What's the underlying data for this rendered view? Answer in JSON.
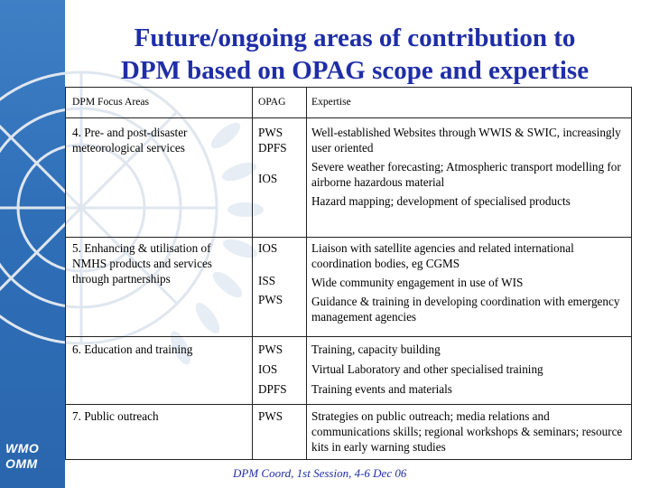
{
  "title": {
    "line1": "Future/ongoing areas of contribution to",
    "line2": "DPM based on OPAG scope and expertise"
  },
  "logo": {
    "line1": "WMO",
    "line2": "OMM"
  },
  "table": {
    "headers": {
      "focus": "DPM Focus Areas",
      "opag": "OPAG",
      "expertise": "Expertise"
    },
    "rows": [
      {
        "focus": [
          "4. Pre- and post-disaster",
          "meteorological services"
        ],
        "opag": [
          "PWS",
          "DPFS",
          "IOS"
        ],
        "expertise": [
          "Well-established Websites through WWIS & SWIC, increasingly user oriented",
          "Severe weather forecasting; Atmospheric transport modelling for airborne hazardous material",
          "Hazard mapping; development of specialised products"
        ]
      },
      {
        "focus": [
          "5. Enhancing & utilisation of",
          "NMHS products and services",
          "through partnerships"
        ],
        "opag": [
          "IOS",
          "ISS",
          "PWS"
        ],
        "expertise": [
          "Liaison with satellite agencies and related international coordination bodies, eg CGMS",
          "Wide community engagement in use of WIS",
          "Guidance & training in developing coordination with emergency management agencies"
        ]
      },
      {
        "focus": [
          "6. Education and training"
        ],
        "opag": [
          "PWS",
          "IOS",
          "DPFS"
        ],
        "expertise": [
          "Training, capacity building",
          "Virtual Laboratory and other specialised training",
          "Training events and materials"
        ]
      },
      {
        "focus": [
          "7. Public outreach"
        ],
        "opag": [
          "PWS"
        ],
        "expertise": [
          "Strategies on public outreach; media relations and communications skills; regional workshops & seminars; resource kits in early warning studies"
        ]
      }
    ]
  },
  "footer": "DPM Coord, 1st Session, 4-6 Dec 06",
  "colors": {
    "title": "#1f2ea6",
    "sidebar": "#2f6fb8",
    "footer": "#1f2ea6"
  }
}
